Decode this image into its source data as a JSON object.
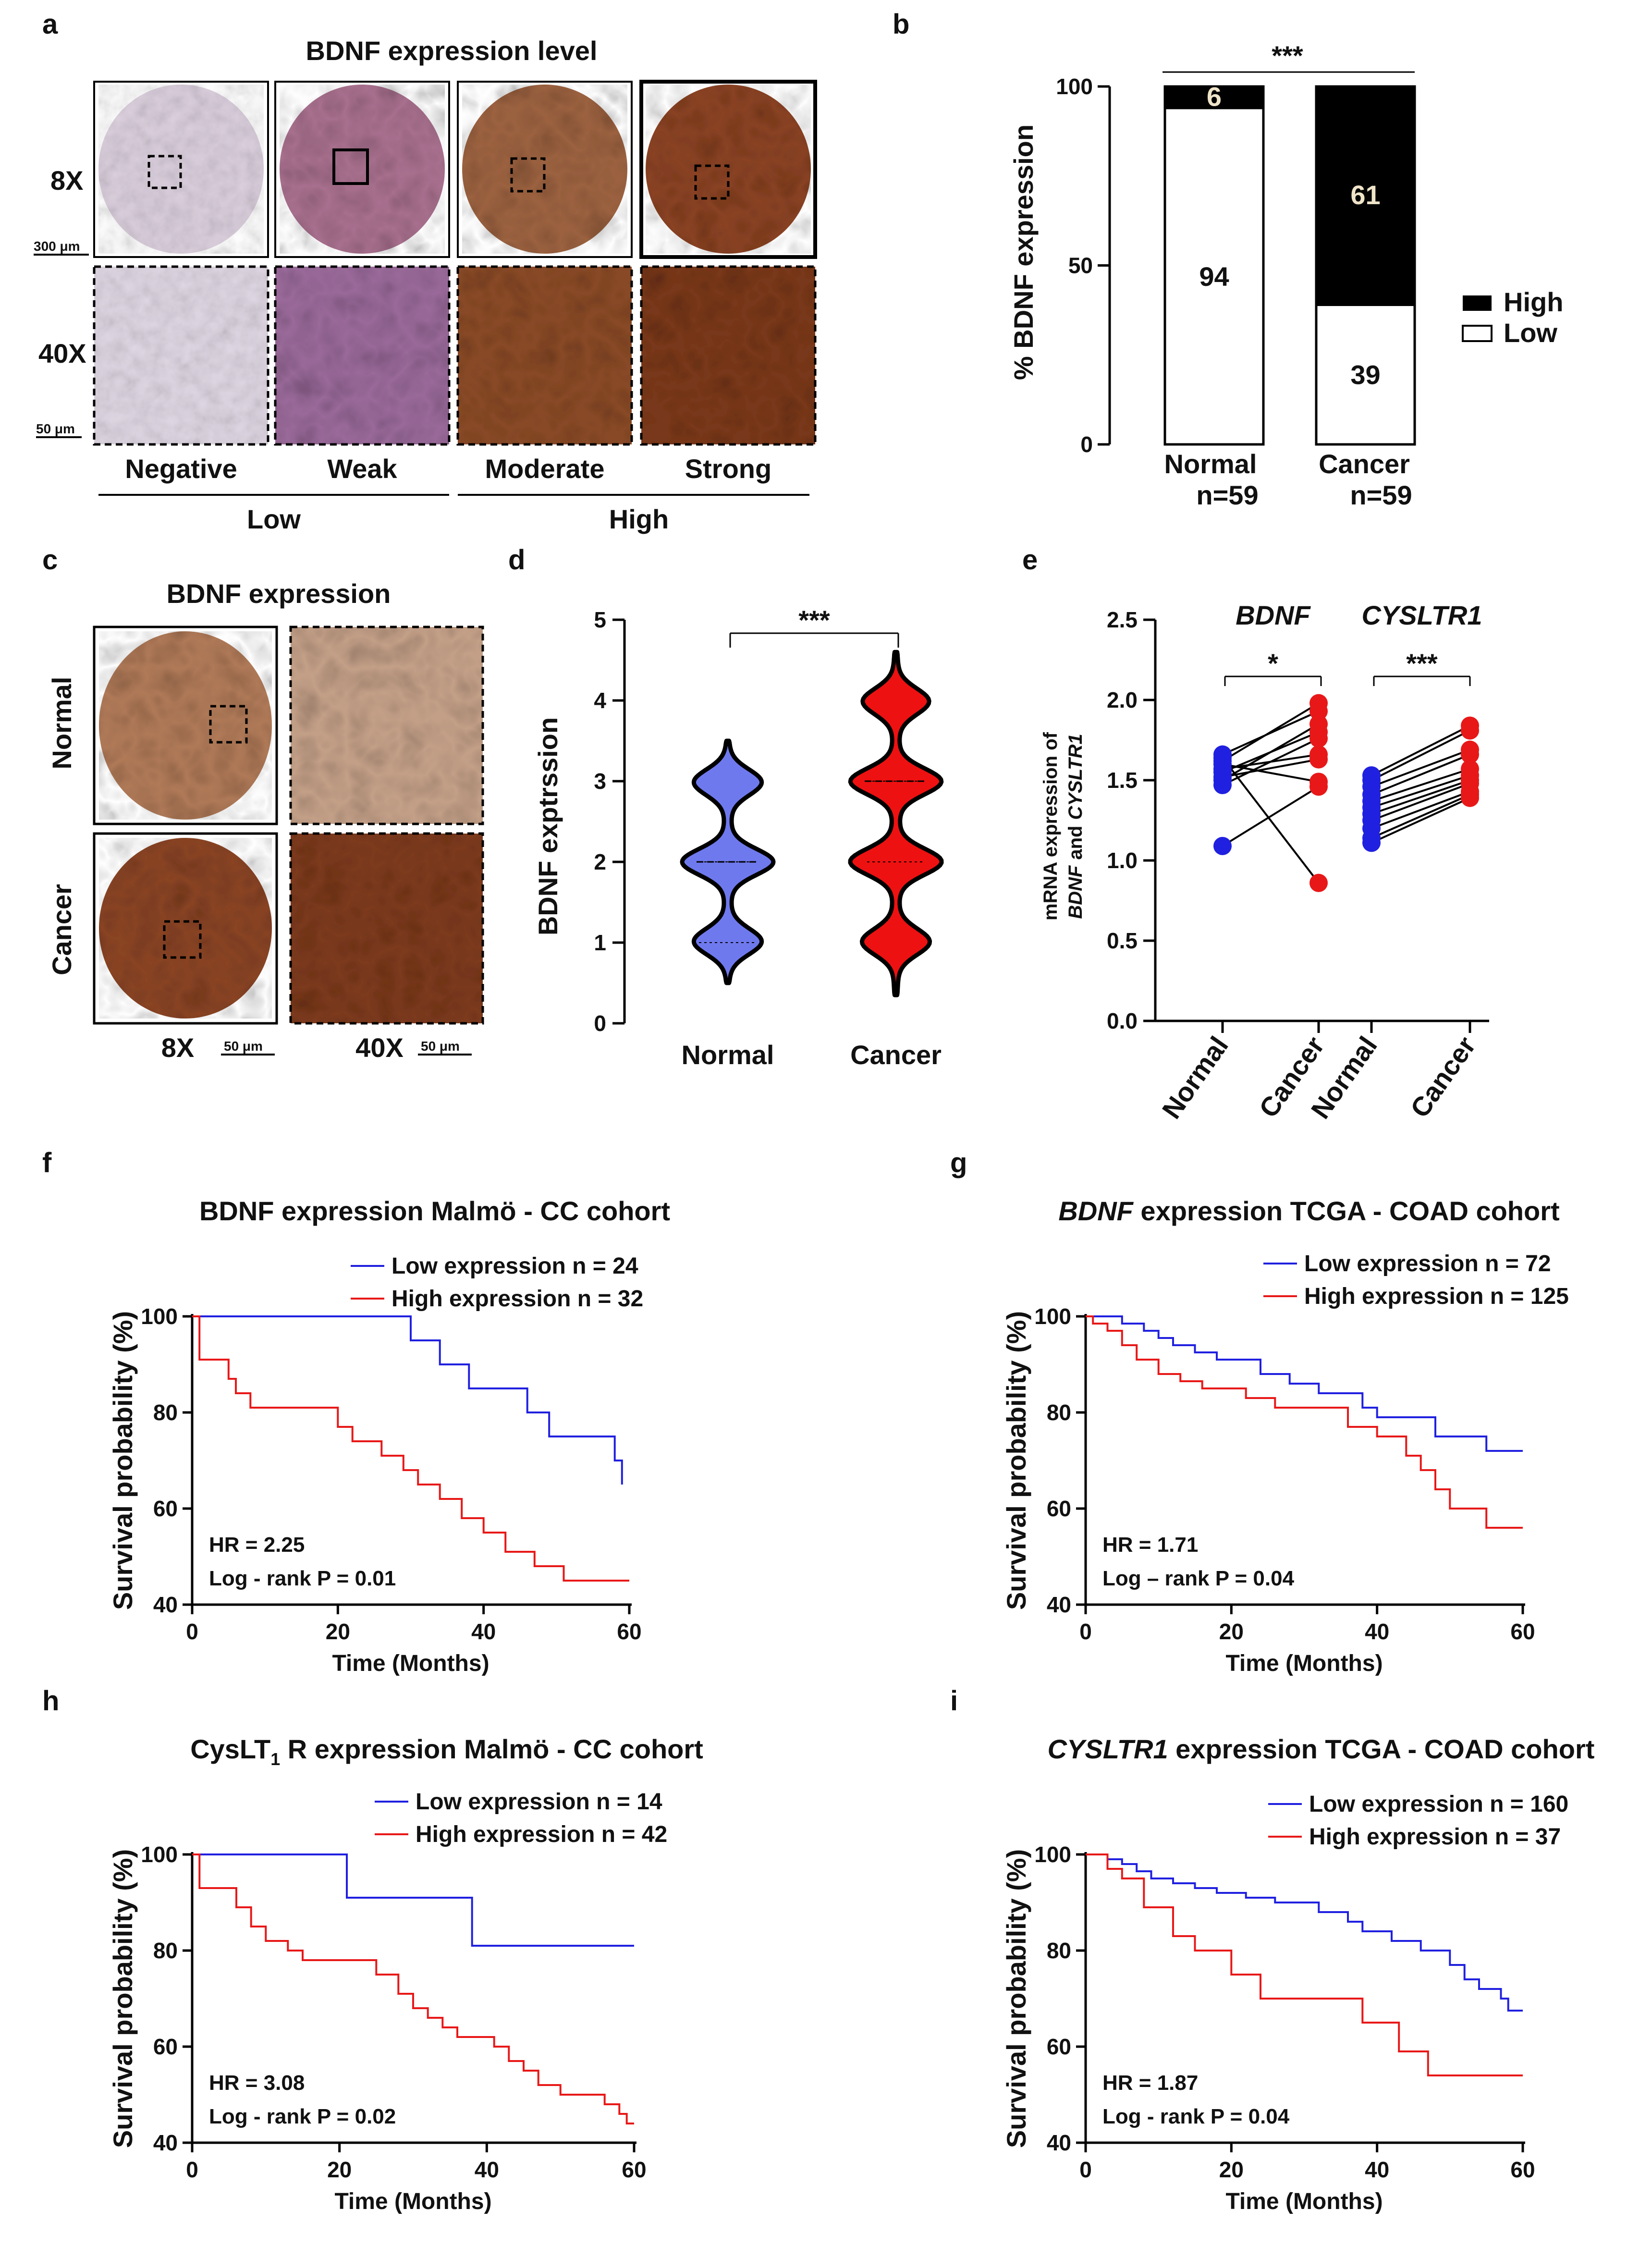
{
  "colors": {
    "blue": "#2020e0",
    "red": "#e81818",
    "violin_blue": "#6f79ee",
    "violin_red": "#ee1111",
    "tissue_light": "#d9cdd9",
    "tissue_purple": "#a8708e",
    "tissue_brown": "#8c4a24",
    "tissue_dark": "#7d3a1c"
  },
  "panels": {
    "a": {
      "letter": "a",
      "title": "BDNF expression level",
      "row_labels": [
        "8X",
        "40X"
      ],
      "scalebars": [
        "300 μm",
        "50 μm"
      ],
      "categories": [
        "Negative",
        "Weak",
        "Moderate",
        "Strong"
      ],
      "groups": [
        "Low",
        "High"
      ]
    },
    "c": {
      "letter": "c",
      "title": "BDNF expression",
      "row_labels": [
        "Normal",
        "Cancer"
      ],
      "mags": [
        "8X",
        "40X"
      ],
      "scalebars": [
        "50 μm",
        "50 μm"
      ]
    }
  },
  "chart_data": [
    {
      "id": "b",
      "letter": "b",
      "type": "bar",
      "stacked": true,
      "categories": [
        "Normal",
        "Cancer"
      ],
      "category_sublabels": [
        "n=59",
        "n=59"
      ],
      "series": [
        {
          "name": "Low",
          "values": [
            94,
            39
          ],
          "value_labels": [
            "94",
            "39"
          ]
        },
        {
          "name": "High",
          "values": [
            6,
            61
          ],
          "value_labels": [
            "6",
            "61"
          ]
        }
      ],
      "legend": [
        "High",
        "Low"
      ],
      "legend_position": "right",
      "ylabel": "% BDNF expression",
      "ylim": [
        0,
        100
      ],
      "yticks": [
        "0",
        "50",
        "100"
      ],
      "significance": "***"
    },
    {
      "id": "d",
      "letter": "d",
      "type": "violin",
      "categories": [
        "Normal",
        "Cancer"
      ],
      "ylabel": "BDNF exptrssion",
      "ylim": [
        0,
        5
      ],
      "yticks": [
        "0",
        "1",
        "2",
        "3",
        "4",
        "5"
      ],
      "violins": [
        {
          "name": "Normal",
          "min": 0.5,
          "max": 3.5,
          "modes": [
            1,
            2,
            3
          ],
          "median": 2,
          "quartiles": [
            1,
            2
          ]
        },
        {
          "name": "Cancer",
          "min": 0.35,
          "max": 4.6,
          "modes": [
            1,
            2,
            3,
            4
          ],
          "median": 3,
          "quartiles": [
            2,
            3
          ]
        }
      ],
      "significance": "***"
    },
    {
      "id": "e",
      "letter": "e",
      "type": "scatter",
      "ylabel_parts": [
        "mRNA expression of",
        "BDNF",
        "and",
        "CYSLTR1"
      ],
      "ylim": [
        0,
        2.5
      ],
      "yticks": [
        "0.0",
        "0.5",
        "1.0",
        "1.5",
        "2.0",
        "2.5"
      ],
      "xticks": [
        "Normal",
        "Cancer",
        "Normal",
        "Cancer"
      ],
      "gene_labels": [
        "BDNF",
        "CYSLTR1"
      ],
      "significance": [
        "*",
        "***"
      ],
      "pairs": [
        {
          "gene": "BDNF",
          "normal": [
            1.62,
            1.66,
            1.55,
            1.47,
            1.57,
            1.52,
            1.6,
            1.09,
            1.64,
            1.5
          ],
          "cancer": [
            1.98,
            1.93,
            1.8,
            1.76,
            1.66,
            1.63,
            1.49,
            1.46,
            0.86,
            1.85
          ]
        },
        {
          "gene": "CYSLTR1",
          "normal": [
            1.53,
            1.5,
            1.46,
            1.41,
            1.37,
            1.33,
            1.29,
            1.25,
            1.2,
            1.14,
            1.11
          ],
          "cancer": [
            1.84,
            1.81,
            1.69,
            1.66,
            1.57,
            1.53,
            1.5,
            1.48,
            1.43,
            1.41,
            1.39
          ]
        }
      ]
    },
    {
      "id": "f",
      "letter": "f",
      "type": "line",
      "title": "BDNF expression Malmö - CC cohort",
      "xlabel": "Time  (Months)",
      "ylabel": "Survival probability (%)",
      "xlim": [
        0,
        60
      ],
      "ylim": [
        40,
        100
      ],
      "xticks": [
        "0",
        "20",
        "40",
        "60"
      ],
      "yticks": [
        "40",
        "60",
        "80",
        "100"
      ],
      "legend_position": "top-right",
      "series": [
        {
          "name": "Low expression  n = 24",
          "color": "blue",
          "x": [
            0,
            30,
            30,
            34,
            34,
            38,
            38,
            46,
            46,
            49,
            49,
            58,
            58,
            59,
            59
          ],
          "y": [
            100,
            100,
            95,
            95,
            90,
            90,
            85,
            85,
            80,
            80,
            75,
            75,
            70,
            70,
            65
          ]
        },
        {
          "name": "High expression  n = 32",
          "color": "red",
          "x": [
            0,
            1,
            1,
            5,
            5,
            6,
            6,
            8,
            8,
            20,
            20,
            22,
            22,
            26,
            26,
            29,
            29,
            31,
            31,
            34,
            34,
            37,
            37,
            40,
            40,
            43,
            43,
            47,
            47,
            51,
            51,
            60
          ],
          "y": [
            100,
            100,
            91,
            91,
            87,
            87,
            84,
            84,
            81,
            81,
            77,
            77,
            74,
            74,
            71,
            71,
            68,
            68,
            65,
            65,
            62,
            62,
            58,
            58,
            55,
            55,
            51,
            51,
            48,
            48,
            45,
            45
          ]
        }
      ],
      "annotations": [
        "HR = 2.25",
        "Log - rank P = 0.01"
      ]
    },
    {
      "id": "g",
      "letter": "g",
      "type": "line",
      "title_italic": "BDNF",
      "title_rest": " expression TCGA - COAD cohort",
      "xlabel": "Time  (Months)",
      "ylabel": "Survival probability (%)",
      "xlim": [
        0,
        60
      ],
      "ylim": [
        40,
        100
      ],
      "xticks": [
        "0",
        "20",
        "40",
        "60"
      ],
      "yticks": [
        "40",
        "60",
        "80",
        "100"
      ],
      "legend_position": "top-right",
      "series": [
        {
          "name": "Low expression  n =  72",
          "color": "blue",
          "x": [
            0,
            5,
            5,
            8,
            8,
            10,
            10,
            12,
            12,
            15,
            15,
            18,
            18,
            24,
            24,
            28,
            28,
            32,
            32,
            38,
            38,
            40,
            40,
            48,
            48,
            55,
            55,
            60
          ],
          "y": [
            100,
            100,
            98.5,
            98.5,
            97,
            97,
            95.5,
            95.5,
            94,
            94,
            92.5,
            92.5,
            91,
            91,
            88,
            88,
            86,
            86,
            84,
            84,
            81,
            81,
            79,
            79,
            75,
            75,
            72,
            72
          ]
        },
        {
          "name": "High expression  n = 125",
          "color": "red",
          "x": [
            0,
            1,
            1,
            3,
            3,
            5,
            5,
            7,
            7,
            10,
            10,
            13,
            13,
            16,
            16,
            22,
            22,
            26,
            26,
            36,
            36,
            40,
            40,
            44,
            44,
            46,
            46,
            48,
            48,
            50,
            50,
            55,
            55,
            60
          ],
          "y": [
            100,
            100,
            98.5,
            98.5,
            97,
            97,
            94,
            94,
            91,
            91,
            88,
            88,
            86.5,
            86.5,
            85,
            85,
            83,
            83,
            81,
            81,
            77,
            77,
            75,
            75,
            71,
            71,
            68,
            68,
            64,
            64,
            60,
            60,
            56,
            56
          ]
        }
      ],
      "annotations": [
        "HR = 1.71",
        "Log – rank P = 0.04"
      ]
    },
    {
      "id": "h",
      "letter": "h",
      "type": "line",
      "title_pre": "CysLT",
      "title_sub": "1",
      "title_rest": " R expression Malmö - CC cohort",
      "xlabel": "Time  (Months)",
      "ylabel": "Survival probability (%)",
      "xlim": [
        0,
        60
      ],
      "ylim": [
        40,
        100
      ],
      "xticks": [
        "0",
        "20",
        "40",
        "60"
      ],
      "yticks": [
        "40",
        "60",
        "80",
        "100"
      ],
      "legend_position": "top-right",
      "series": [
        {
          "name": "Low expression  n = 14",
          "color": "blue",
          "x": [
            0,
            21,
            21,
            38,
            38,
            60
          ],
          "y": [
            100,
            100,
            91,
            91,
            81,
            81
          ]
        },
        {
          "name": "High expression  n = 42",
          "color": "red",
          "x": [
            0,
            1,
            1,
            6,
            6,
            8,
            8,
            10,
            10,
            13,
            13,
            15,
            15,
            25,
            25,
            28,
            28,
            30,
            30,
            32,
            32,
            34,
            34,
            36,
            36,
            41,
            41,
            43,
            43,
            45,
            45,
            47,
            47,
            50,
            50,
            56,
            56,
            58,
            58,
            59,
            59,
            60
          ],
          "y": [
            100,
            100,
            93,
            93,
            89,
            89,
            85,
            85,
            82,
            82,
            80,
            80,
            78,
            78,
            75,
            75,
            71,
            71,
            68,
            68,
            66,
            66,
            64,
            64,
            62,
            62,
            60,
            60,
            57,
            57,
            55,
            55,
            52,
            52,
            50,
            50,
            48,
            48,
            46,
            46,
            44,
            44
          ]
        }
      ],
      "annotations": [
        "HR = 3.08",
        "Log - rank P = 0.02"
      ]
    },
    {
      "id": "i",
      "letter": "i",
      "type": "line",
      "title_italic": "CYSLTR1",
      "title_rest": " expression TCGA - COAD cohort",
      "xlabel": "Time  (Months)",
      "ylabel": "Survival probability (%)",
      "xlim": [
        0,
        60
      ],
      "ylim": [
        40,
        100
      ],
      "xticks": [
        "0",
        "20",
        "40",
        "60"
      ],
      "yticks": [
        "40",
        "60",
        "80",
        "100"
      ],
      "legend_position": "top-right",
      "series": [
        {
          "name": "Low expression  n =  160",
          "color": "blue",
          "x": [
            0,
            3,
            3,
            5,
            5,
            7,
            7,
            9,
            9,
            12,
            12,
            15,
            15,
            18,
            18,
            22,
            22,
            26,
            26,
            32,
            32,
            36,
            36,
            38,
            38,
            42,
            42,
            46,
            46,
            50,
            50,
            52,
            52,
            54,
            54,
            57,
            57,
            58,
            58,
            60
          ],
          "y": [
            100,
            100,
            99,
            99,
            98,
            98,
            96.5,
            96.5,
            95,
            95,
            94,
            94,
            93,
            93,
            92,
            92,
            91,
            91,
            90,
            90,
            88,
            88,
            86,
            86,
            84,
            84,
            82,
            82,
            80,
            80,
            77,
            77,
            74,
            74,
            72,
            72,
            70,
            70,
            67.5,
            67.5
          ]
        },
        {
          "name": "High expression  n =  37",
          "color": "red",
          "x": [
            0,
            3,
            3,
            5,
            5,
            8,
            8,
            12,
            12,
            15,
            15,
            20,
            20,
            24,
            24,
            27,
            27,
            38,
            38,
            43,
            43,
            47,
            47,
            60
          ],
          "y": [
            100,
            100,
            97,
            97,
            95,
            95,
            89,
            89,
            83,
            83,
            80,
            80,
            75,
            75,
            70,
            70,
            70,
            70,
            65,
            65,
            59,
            59,
            54,
            54
          ]
        }
      ],
      "annotations": [
        "HR = 1.87",
        "Log - rank P = 0.04"
      ]
    }
  ]
}
